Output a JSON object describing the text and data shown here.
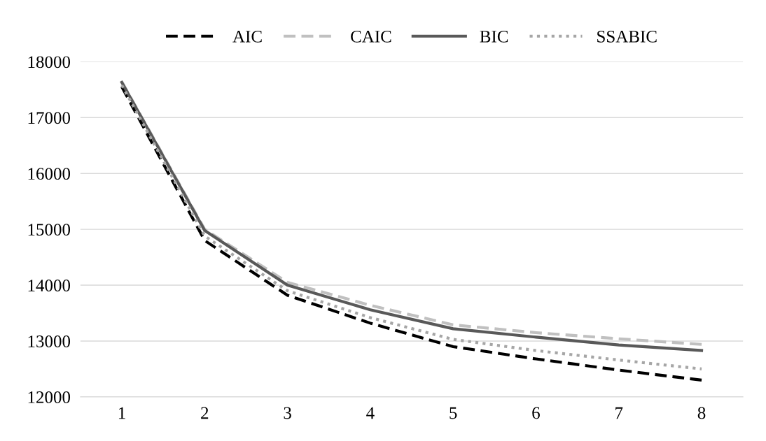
{
  "chart_data": {
    "type": "line",
    "categories": [
      "1",
      "2",
      "3",
      "4",
      "5",
      "6",
      "7",
      "8"
    ],
    "series": [
      {
        "name": "AIC",
        "color": "#000000",
        "line_style": "dashed",
        "values": [
          17550,
          14800,
          13820,
          13320,
          12900,
          12680,
          12480,
          12300
        ]
      },
      {
        "name": "CAIC",
        "color": "#c0c0c0",
        "line_style": "dashed",
        "values": [
          17640,
          15000,
          14050,
          13640,
          13290,
          13150,
          13040,
          12940
        ]
      },
      {
        "name": "BIC",
        "color": "#595959",
        "line_style": "solid",
        "values": [
          17630,
          14980,
          14000,
          13560,
          13220,
          13070,
          12930,
          12830
        ]
      },
      {
        "name": "SSABIC",
        "color": "#a6a6a6",
        "line_style": "dotted",
        "values": [
          17580,
          14880,
          13900,
          13420,
          13030,
          12830,
          12660,
          12500
        ]
      }
    ],
    "ylim": [
      12000,
      18000
    ],
    "yticks": [
      12000,
      13000,
      14000,
      15000,
      16000,
      17000,
      18000
    ],
    "grid": "y",
    "legend": "top",
    "marker": "none"
  }
}
